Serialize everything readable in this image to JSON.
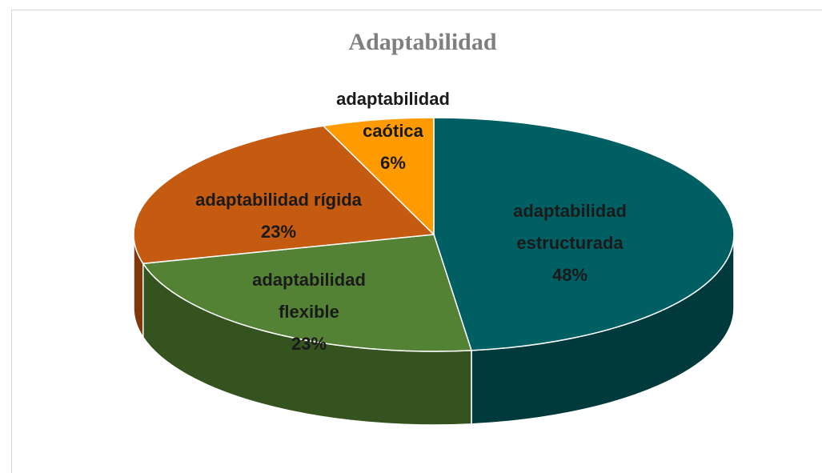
{
  "chart_data": {
    "type": "pie",
    "title": "Adaptabilidad",
    "style": "3d",
    "slices": [
      {
        "label_lines": [
          "adaptabilidad",
          "estructurada",
          "48%"
        ],
        "value": 48,
        "color": "#005f62",
        "side": "#003a3c"
      },
      {
        "label_lines": [
          "adaptabilidad",
          "flexible",
          "23%"
        ],
        "value": 23,
        "color": "#548235",
        "side": "#35531f"
      },
      {
        "label_lines": [
          "adaptabilidad  rígida",
          "23%"
        ],
        "value": 23,
        "color": "#c55a11",
        "side": "#80380a"
      },
      {
        "label_lines": [
          "adaptabilidad",
          "caótica",
          "6%"
        ],
        "value": 6,
        "color": "#ff9a00",
        "side": "#b36b00"
      }
    ]
  }
}
